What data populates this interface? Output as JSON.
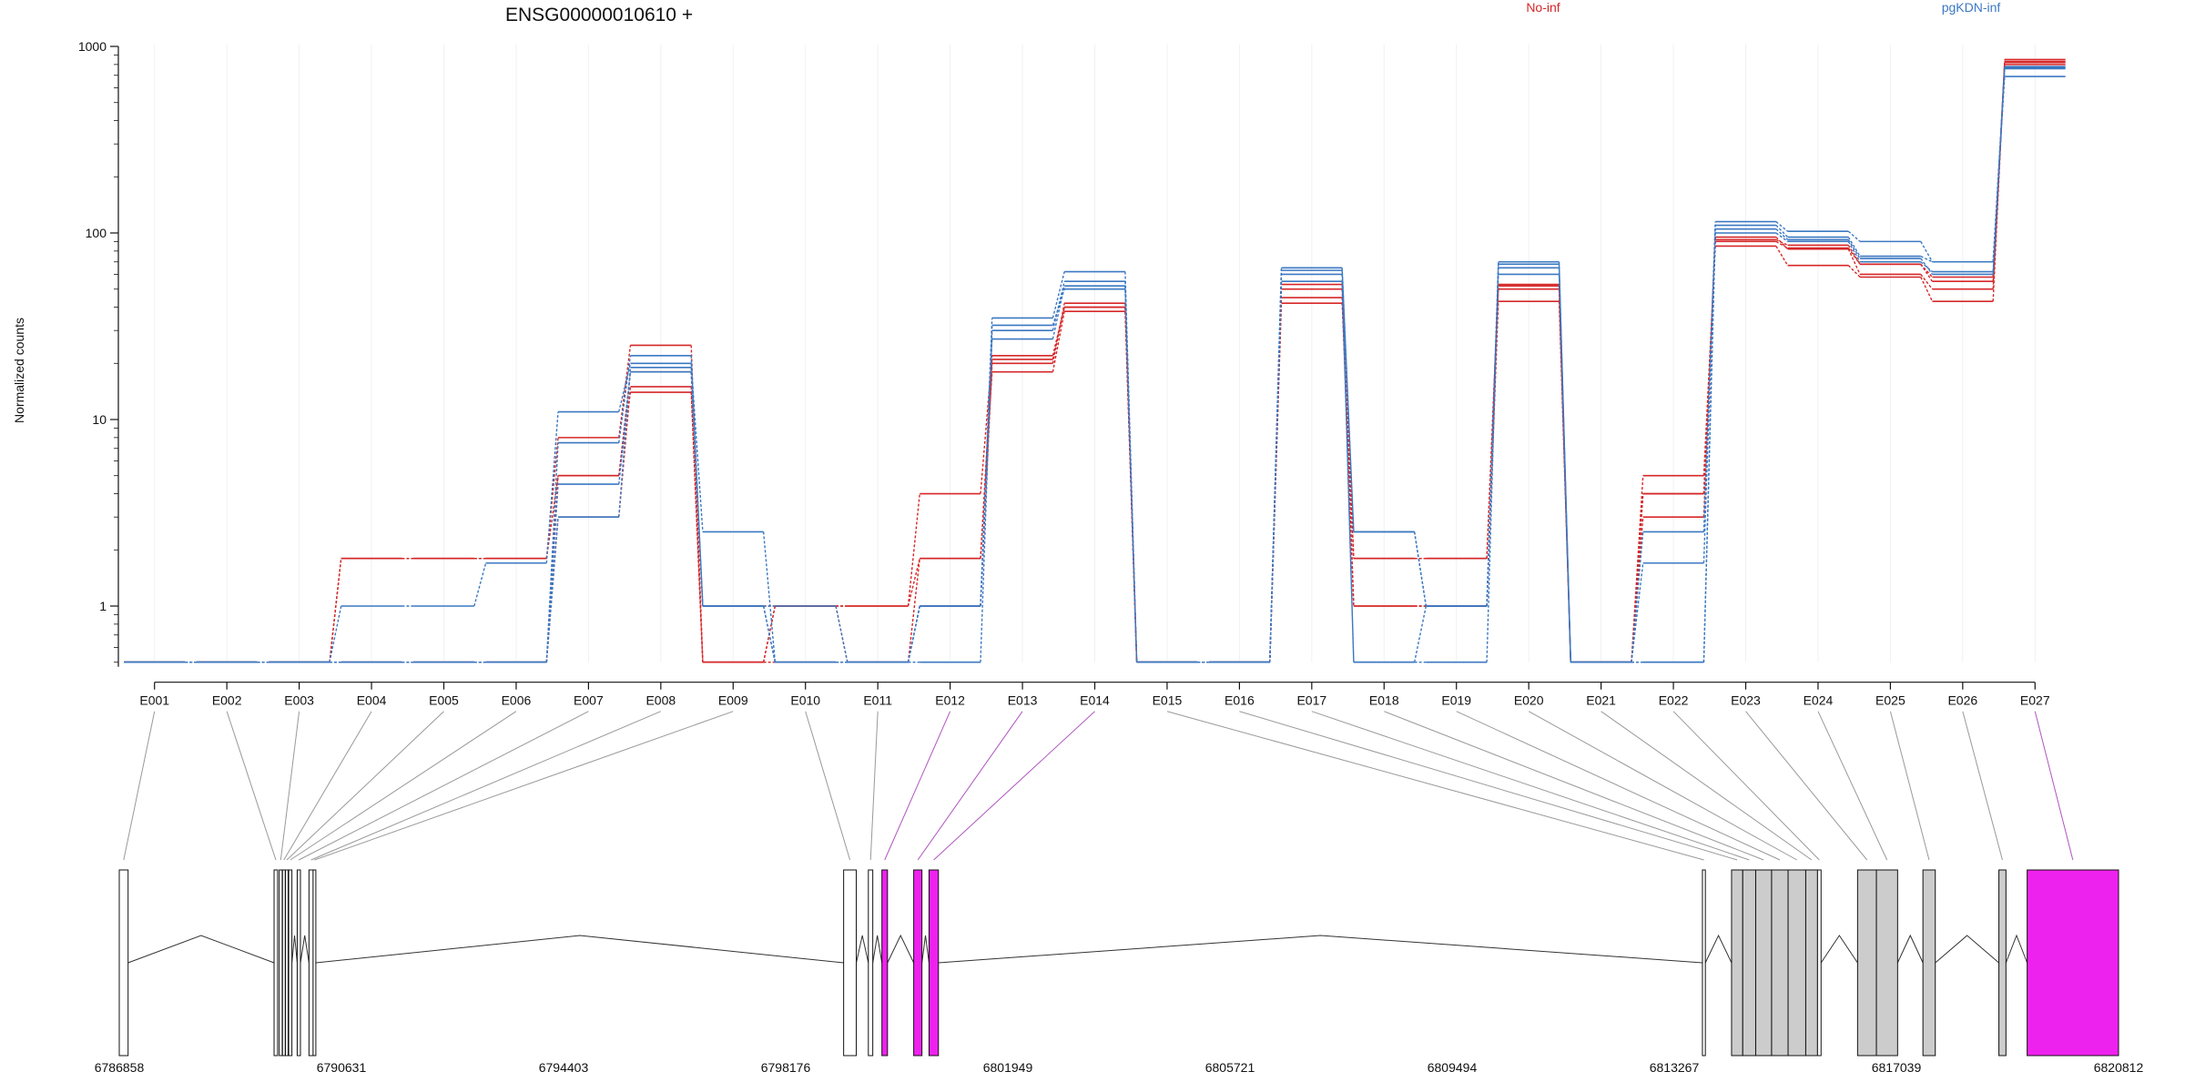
{
  "chart_data": {
    "type": "line",
    "title": "ENSG00000010610 +",
    "ylabel": "Normalized counts",
    "yscale": "log",
    "y_ticks": [
      "1000",
      "100",
      "10",
      "1"
    ],
    "y_tick_values": [
      1000,
      100,
      10,
      1
    ],
    "ylim": [
      0.5,
      1000
    ],
    "grid": "vertical, light",
    "legend_position": "top",
    "categories": [
      "E001",
      "E002",
      "E003",
      "E004",
      "E005",
      "E006",
      "E007",
      "E008",
      "E009",
      "E010",
      "E011",
      "E012",
      "E013",
      "E014",
      "E015",
      "E016",
      "E017",
      "E018",
      "E019",
      "E020",
      "E021",
      "E022",
      "E023",
      "E024",
      "E025",
      "E026",
      "E027"
    ],
    "colors": {
      "No-inf": "#d62728",
      "pgKDN-inf": "#3b78c2",
      "highlight": "#ee22ee",
      "exon": "#cccccc"
    },
    "groups": [
      {
        "name": "No-inf",
        "color": "#d62728"
      },
      {
        "name": "pgKDN-inf",
        "color": "#3b78c2"
      }
    ],
    "series": [
      {
        "group": "No-inf",
        "values": [
          0.5,
          0.5,
          0.5,
          1.8,
          1.8,
          1.8,
          8,
          25,
          0.5,
          1,
          1,
          4,
          22,
          40,
          0.5,
          0.5,
          45,
          1,
          1,
          43,
          0.5,
          5,
          85,
          67,
          58,
          43,
          850
        ]
      },
      {
        "group": "No-inf",
        "values": [
          0.5,
          0.5,
          0.5,
          1.8,
          1.8,
          1.8,
          5,
          18,
          1,
          1,
          1,
          1.8,
          18,
          38,
          0.5,
          0.5,
          50,
          1.8,
          1.8,
          52,
          0.5,
          3,
          95,
          82,
          60,
          50,
          830
        ]
      },
      {
        "group": "No-inf",
        "values": [
          0.5,
          0.5,
          0.5,
          0.5,
          0.5,
          0.5,
          3,
          15,
          0.5,
          1,
          0.5,
          1,
          20,
          42,
          0.5,
          0.5,
          42,
          1.8,
          1.8,
          53,
          0.5,
          4,
          92,
          86,
          68,
          55,
          820
        ]
      },
      {
        "group": "No-inf",
        "values": [
          0.5,
          0.5,
          0.5,
          0.5,
          0.5,
          0.5,
          5,
          14,
          0.5,
          0.5,
          0.5,
          1.8,
          21,
          40,
          0.5,
          0.5,
          53,
          1,
          1,
          50,
          0.5,
          4,
          90,
          83,
          68,
          58,
          800
        ]
      },
      {
        "group": "pgKDN-inf",
        "values": [
          0.5,
          0.5,
          0.5,
          1,
          1,
          1.7,
          11,
          20,
          2.5,
          0.5,
          0.5,
          1,
          35,
          62,
          0.5,
          0.5,
          65,
          2.5,
          1,
          70,
          0.5,
          2.5,
          115,
          102,
          90,
          70,
          690
        ]
      },
      {
        "group": "pgKDN-inf",
        "values": [
          0.5,
          0.5,
          0.5,
          0.5,
          0.5,
          0.5,
          7.5,
          22,
          1,
          1,
          0.5,
          0.5,
          30,
          55,
          0.5,
          0.5,
          60,
          0.5,
          0.5,
          68,
          0.5,
          1.7,
          110,
          95,
          75,
          70,
          770
        ]
      },
      {
        "group": "pgKDN-inf",
        "values": [
          0.5,
          0.5,
          0.5,
          0.5,
          0.5,
          0.5,
          3,
          19,
          1,
          0.5,
          0.5,
          1,
          27,
          52,
          0.5,
          0.5,
          55,
          0.5,
          1,
          65,
          0.5,
          0.5,
          100,
          90,
          70,
          62,
          760
        ]
      },
      {
        "group": "pgKDN-inf",
        "values": [
          0.5,
          0.5,
          0.5,
          0.5,
          0.5,
          0.5,
          4.5,
          18,
          1,
          0.5,
          0.5,
          1,
          32,
          50,
          0.5,
          0.5,
          63,
          2.5,
          1,
          60,
          0.5,
          0.5,
          105,
          92,
          73,
          60,
          780
        ]
      }
    ],
    "exon_highlight": [
      "E012",
      "E013",
      "E014",
      "E027"
    ],
    "genomic_ticks": [
      "6786858",
      "6790631",
      "6794403",
      "6798176",
      "6801949",
      "6805721",
      "6809494",
      "6813267",
      "6817039",
      "6820812"
    ],
    "genomic_range": [
      6786858,
      6820812
    ],
    "exons": [
      {
        "id": "E001",
        "start": 6786858,
        "end": 6787008
      },
      {
        "id": "E002",
        "start": 6789487,
        "end": 6789547
      },
      {
        "id": "E003",
        "start": 6789575,
        "end": 6789625
      },
      {
        "id": "E004",
        "start": 6789630,
        "end": 6789672
      },
      {
        "id": "E005",
        "start": 6789680,
        "end": 6789722
      },
      {
        "id": "E006",
        "start": 6789735,
        "end": 6789790
      },
      {
        "id": "E007",
        "start": 6789880,
        "end": 6789935
      },
      {
        "id": "E008",
        "start": 6790080,
        "end": 6790150
      },
      {
        "id": "E009",
        "start": 6790150,
        "end": 6790190
      },
      {
        "id": "E010",
        "start": 6799160,
        "end": 6799375
      },
      {
        "id": "E011",
        "start": 6799580,
        "end": 6799655
      },
      {
        "id": "E012",
        "start": 6799810,
        "end": 6799905
      },
      {
        "id": "E013",
        "start": 6800350,
        "end": 6800490
      },
      {
        "id": "E014",
        "start": 6800610,
        "end": 6800770
      },
      {
        "id": "E015",
        "start": 6813745,
        "end": 6813795
      },
      {
        "id": "E016",
        "start": 6814240,
        "end": 6814430
      },
      {
        "id": "E017",
        "start": 6814430,
        "end": 6814650
      },
      {
        "id": "E018",
        "start": 6814650,
        "end": 6814920
      },
      {
        "id": "E019",
        "start": 6814920,
        "end": 6815200
      },
      {
        "id": "E020",
        "start": 6815200,
        "end": 6815500
      },
      {
        "id": "E021",
        "start": 6815500,
        "end": 6815700
      },
      {
        "id": "E022",
        "start": 6815700,
        "end": 6815760
      },
      {
        "id": "E023",
        "start": 6816380,
        "end": 6816700
      },
      {
        "id": "E024",
        "start": 6816700,
        "end": 6817060
      },
      {
        "id": "E025",
        "start": 6817490,
        "end": 6817700
      },
      {
        "id": "E026",
        "start": 6818780,
        "end": 6818900
      },
      {
        "id": "E027",
        "start": 6819260,
        "end": 6820812
      }
    ]
  }
}
